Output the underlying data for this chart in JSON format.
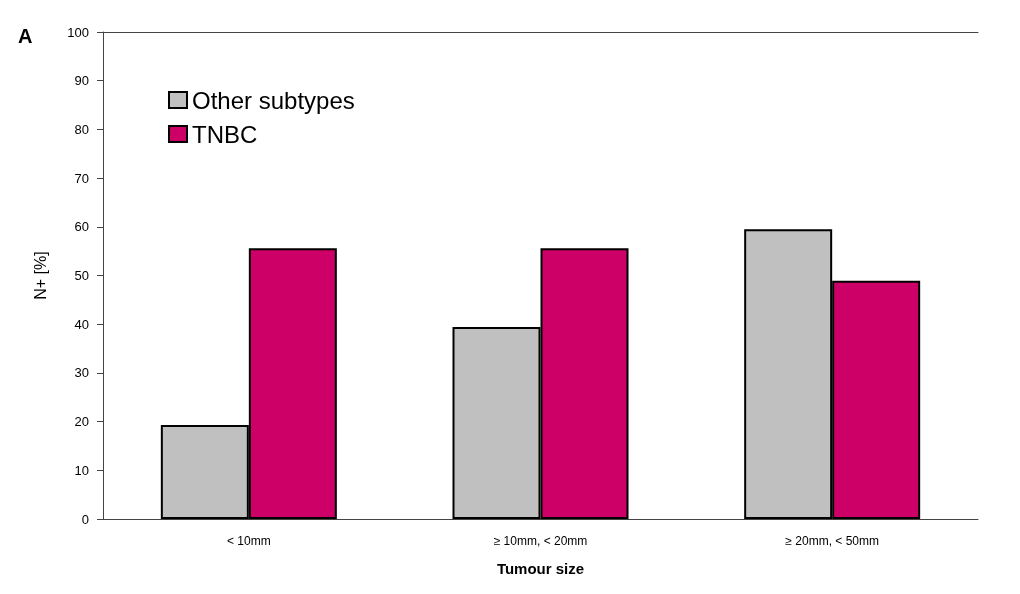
{
  "chart_data": {
    "type": "bar",
    "xlabel": "Tumour size",
    "ylabel": "N+ [%]",
    "annotations": [
      "A"
    ],
    "categories": [
      "< 10mm",
      "≥ 10mm, < 20mm",
      "≥ 20mm, < 50mm"
    ],
    "series": [
      {
        "name": "Other subtypes",
        "color": "#c0c0c0",
        "values": [
          19.3,
          39.4,
          59.5
        ]
      },
      {
        "name": "TNBC",
        "color": "#cc0066",
        "values": [
          55.6,
          55.6,
          48.9
        ]
      }
    ],
    "ylim": [
      0,
      100
    ],
    "yticks": [
      0,
      10,
      20,
      30,
      40,
      50,
      60,
      70,
      80,
      90,
      100
    ],
    "grid": false,
    "legend": "top left"
  }
}
